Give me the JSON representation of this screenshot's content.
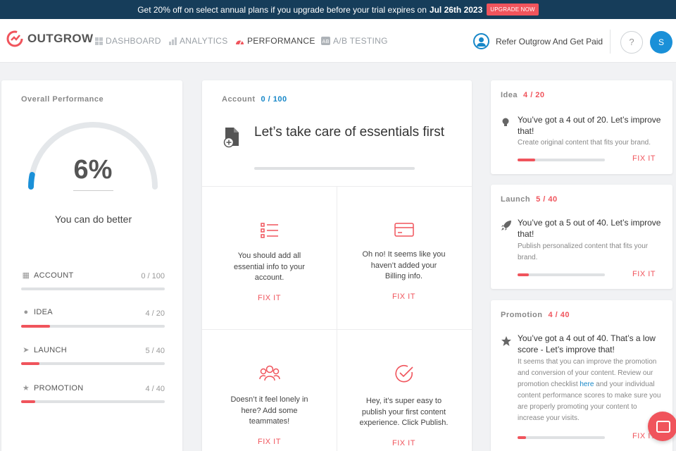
{
  "promo": {
    "text": "Get 20% off on select annual plans if you upgrade before your trial expires on",
    "date": "Jul 26th 2023",
    "button": "UPGRADE NOW"
  },
  "nav": {
    "logo": "OUTGROW",
    "items": [
      {
        "label": "DASHBOARD",
        "icon": "dashboard-icon"
      },
      {
        "label": "ANALYTICS",
        "icon": "analytics-icon"
      },
      {
        "label": "PERFORMANCE",
        "icon": "performance-icon",
        "active": true
      },
      {
        "label": "A/B TESTING",
        "icon": "ab-testing-icon"
      }
    ],
    "refer": "Refer Outgrow And Get Paid",
    "help": "?",
    "avatar": "S"
  },
  "overall": {
    "title": "Overall Performance",
    "percent_label": "6%",
    "percent": 6,
    "message": "You can do better",
    "rows": [
      {
        "name": "ACCOUNT",
        "icon": "account-icon",
        "score": "0 / 100",
        "fraction": 0.0
      },
      {
        "name": "IDEA",
        "icon": "lightbulb-icon",
        "score": "4 / 20",
        "fraction": 0.2
      },
      {
        "name": "LAUNCH",
        "icon": "rocket-icon",
        "score": "5 / 40",
        "fraction": 0.125
      },
      {
        "name": "PROMOTION",
        "icon": "star-icon",
        "score": "4 / 40",
        "fraction": 0.1
      }
    ]
  },
  "account": {
    "label": "Account",
    "score": "0 / 100",
    "heading": "Let’s take care of essentials first",
    "tiles": [
      {
        "icon": "list-icon",
        "text": "You should add all essential info to your account.",
        "fix": "FIX IT"
      },
      {
        "icon": "credit-card-icon",
        "text": "Oh no! It seems like you haven’t added your Billing info.",
        "fix": "FIX IT"
      },
      {
        "icon": "team-icon",
        "text": "Doesn’t it feel lonely in here? Add some teammates!",
        "fix": "FIX IT"
      },
      {
        "icon": "check-circle-icon",
        "text": "Hey, it’s super easy to publish your first content experience. Click Publish.",
        "fix": "FIX IT"
      }
    ]
  },
  "side": [
    {
      "label": "Idea",
      "score": "4 / 20",
      "fraction": 0.2,
      "icon": "lightbulb-icon",
      "heading": "You’ve got a 4 out of 20. Let’s improve that!",
      "sub": "Create original content that fits your brand.",
      "fix": "FIX IT"
    },
    {
      "label": "Launch",
      "score": "5 / 40",
      "fraction": 0.125,
      "icon": "rocket-icon",
      "heading": "You’ve got a 5 out of 40. Let’s improve that!",
      "sub": "Publish personalized content that fits your brand.",
      "fix": "FIX IT"
    },
    {
      "label": "Promotion",
      "score": "4 / 40",
      "fraction": 0.1,
      "icon": "star-icon",
      "heading": "You’ve got a 4 out of 40. That’s a low score - Let’s improve that!",
      "sub_before": "It seems that you can improve the promotion and conversion of your content. Review our promotion checklist",
      "sub_link": "here",
      "sub_after": "and your individual content performance scores to make sure you are properly promoting your content to increase your visits.",
      "fix": "FIX IT"
    }
  ],
  "colors": {
    "accent": "#f0545c",
    "brand_blue": "#1787c8",
    "promo_bg": "#163d5a"
  }
}
